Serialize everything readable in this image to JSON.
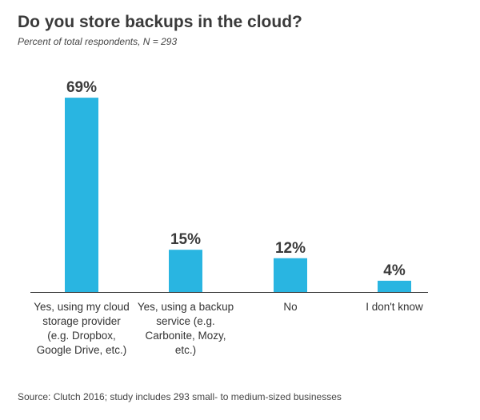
{
  "chart_data": {
    "type": "bar",
    "title": "Do you store backups in the cloud?",
    "subtitle": "Percent of total respondents, N = 293",
    "categories": [
      "Yes, using my cloud storage provider (e.g. Dropbox, Google Drive, etc.)",
      "Yes, using a backup service (e.g. Carbonite, Mozy, etc.)",
      "No",
      "I don't know"
    ],
    "values": [
      69,
      15,
      12,
      4
    ],
    "value_labels": [
      "69%",
      "15%",
      "12%",
      "4%"
    ],
    "color": "#29b5e1",
    "source": "Source: Clutch 2016; study includes 293 small- to medium-sized businesses"
  }
}
